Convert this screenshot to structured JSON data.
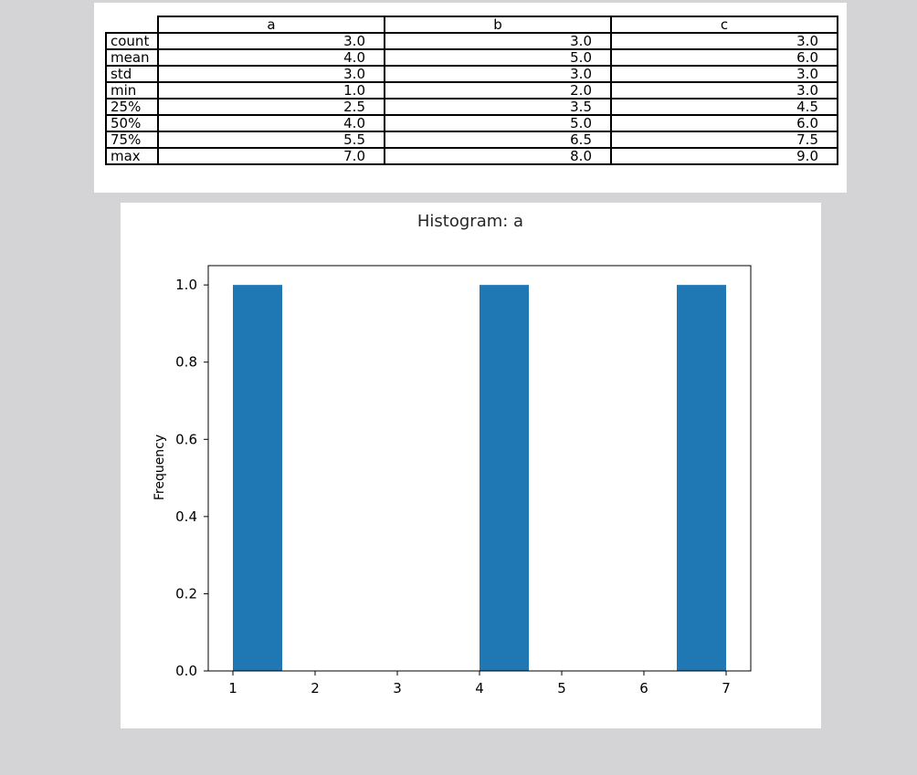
{
  "stats_table": {
    "columns": [
      "a",
      "b",
      "c"
    ],
    "rows": [
      {
        "label": "count",
        "values": [
          "3.0",
          "3.0",
          "3.0"
        ]
      },
      {
        "label": "mean",
        "values": [
          "4.0",
          "5.0",
          "6.0"
        ]
      },
      {
        "label": "std",
        "values": [
          "3.0",
          "3.0",
          "3.0"
        ]
      },
      {
        "label": "min",
        "values": [
          "1.0",
          "2.0",
          "3.0"
        ]
      },
      {
        "label": "25%",
        "values": [
          "2.5",
          "3.5",
          "4.5"
        ]
      },
      {
        "label": "50%",
        "values": [
          "4.0",
          "5.0",
          "6.0"
        ]
      },
      {
        "label": "75%",
        "values": [
          "5.5",
          "6.5",
          "7.5"
        ]
      },
      {
        "label": "max",
        "values": [
          "7.0",
          "8.0",
          "9.0"
        ]
      }
    ]
  },
  "chart_data": {
    "type": "bar",
    "title": "Histogram: a",
    "xlabel": "",
    "ylabel": "Frequency",
    "bar_color": "#1f77b4",
    "bins": [
      {
        "start": 1.0,
        "end": 1.6,
        "value": 1
      },
      {
        "start": 1.6,
        "end": 2.2,
        "value": 0
      },
      {
        "start": 2.2,
        "end": 2.8,
        "value": 0
      },
      {
        "start": 2.8,
        "end": 3.4,
        "value": 0
      },
      {
        "start": 3.4,
        "end": 4.0,
        "value": 0
      },
      {
        "start": 4.0,
        "end": 4.6,
        "value": 1
      },
      {
        "start": 4.6,
        "end": 5.2,
        "value": 0
      },
      {
        "start": 5.2,
        "end": 5.8,
        "value": 0
      },
      {
        "start": 5.8,
        "end": 6.4,
        "value": 0
      },
      {
        "start": 6.4,
        "end": 7.0,
        "value": 1
      }
    ],
    "xlim": [
      0.7,
      7.3
    ],
    "ylim": [
      0,
      1.05
    ],
    "xticks": [
      1,
      2,
      3,
      4,
      5,
      6,
      7
    ],
    "yticks": [
      0.0,
      0.2,
      0.4,
      0.6,
      0.8,
      1.0
    ],
    "grid": false,
    "legend": false
  }
}
